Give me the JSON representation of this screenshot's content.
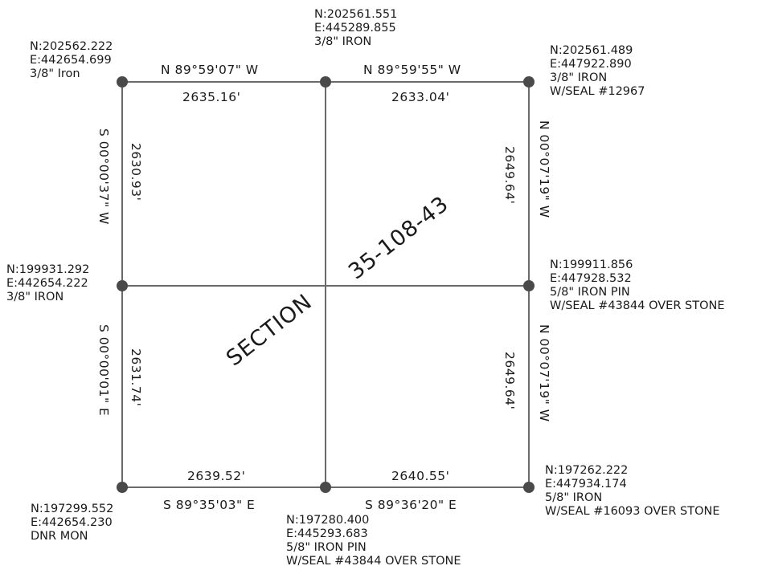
{
  "corners": {
    "nw": {
      "n": "N:202562.222",
      "e": "E:442654.699",
      "desc1": "3/8\" Iron",
      "desc2": ""
    },
    "nc": {
      "n": "N:202561.551",
      "e": "E:445289.855",
      "desc1": "3/8\" IRON",
      "desc2": ""
    },
    "ne": {
      "n": "N:202561.489",
      "e": "E:447922.890",
      "desc1": "3/8\" IRON",
      "desc2": "W/SEAL #12967"
    },
    "wc": {
      "n": "N:199931.292",
      "e": "E:442654.222",
      "desc1": "3/8\" IRON",
      "desc2": ""
    },
    "ec": {
      "n": "N:199911.856",
      "e": "E:447928.532",
      "desc1": "5/8\" IRON PIN",
      "desc2": "W/SEAL #43844 OVER STONE"
    },
    "sw": {
      "n": "N:197299.552",
      "e": "E:442654.230",
      "desc1": "DNR MON",
      "desc2": ""
    },
    "sc": {
      "n": "N:197280.400",
      "e": "E:445293.683",
      "desc1": "5/8\" IRON PIN",
      "desc2": "W/SEAL #43844 OVER STONE"
    },
    "se": {
      "n": "N:197262.222",
      "e": "E:447934.174",
      "desc1": "5/8\" IRON",
      "desc2": "W/SEAL #16093 OVER STONE"
    }
  },
  "lines": {
    "north_west": {
      "bearing": "N 89°59'07\" W",
      "distance": "2635.16'"
    },
    "north_east": {
      "bearing": "N 89°59'55\" W",
      "distance": "2633.04'"
    },
    "west_north": {
      "bearing": "S 00°00'37\" W",
      "distance": "2630.93'"
    },
    "west_south": {
      "bearing": "S 00°00'01\" E",
      "distance": "2631.74'"
    },
    "east_north": {
      "bearing": "N 00°07'19\" W",
      "distance": "2649.64'"
    },
    "east_south": {
      "bearing": "N 00°07'19\" W",
      "distance": "2649.64'"
    },
    "south_west": {
      "bearing": "S 89°35'03\" E",
      "distance": "2639.52'"
    },
    "south_east": {
      "bearing": "S 89°36'20\" E",
      "distance": "2640.55'"
    }
  },
  "section": {
    "word": "SECTION",
    "number": "35-108-43"
  }
}
